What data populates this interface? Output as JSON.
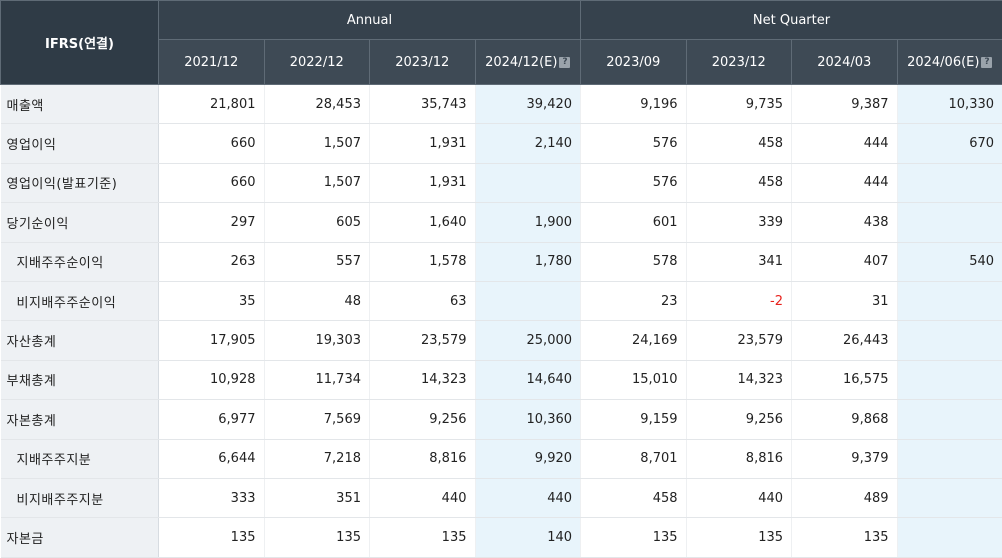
{
  "header": {
    "corner": "IFRS(연결)",
    "group_annual": "Annual",
    "group_quarter": "Net Quarter",
    "periods": [
      "2021/12",
      "2022/12",
      "2023/12",
      "2024/12(E)",
      "2023/09",
      "2023/12",
      "2024/03",
      "2024/06(E)"
    ],
    "estimate_icon": "?"
  },
  "rows": [
    {
      "label": "매출액",
      "values": [
        "21,801",
        "28,453",
        "35,743",
        "39,420",
        "9,196",
        "9,735",
        "9,387",
        "10,330"
      ]
    },
    {
      "label": "영업이익",
      "values": [
        "660",
        "1,507",
        "1,931",
        "2,140",
        "576",
        "458",
        "444",
        "670"
      ]
    },
    {
      "label": "영업이익(발표기준)",
      "values": [
        "660",
        "1,507",
        "1,931",
        "",
        "576",
        "458",
        "444",
        ""
      ]
    },
    {
      "label": "당기순이익",
      "values": [
        "297",
        "605",
        "1,640",
        "1,900",
        "601",
        "339",
        "438",
        ""
      ]
    },
    {
      "label": "지배주주순이익",
      "values": [
        "263",
        "557",
        "1,578",
        "1,780",
        "578",
        "341",
        "407",
        "540"
      ]
    },
    {
      "label": "비지배주주순이익",
      "values": [
        "35",
        "48",
        "63",
        "",
        "23",
        "-2",
        "31",
        ""
      ]
    },
    {
      "label": "자산총계",
      "values": [
        "17,905",
        "19,303",
        "23,579",
        "25,000",
        "24,169",
        "23,579",
        "26,443",
        ""
      ]
    },
    {
      "label": "부채총계",
      "values": [
        "10,928",
        "11,734",
        "14,323",
        "14,640",
        "15,010",
        "14,323",
        "16,575",
        ""
      ]
    },
    {
      "label": "자본총계",
      "values": [
        "6,977",
        "7,569",
        "9,256",
        "10,360",
        "9,159",
        "9,256",
        "9,868",
        ""
      ]
    },
    {
      "label": "지배주주지분",
      "values": [
        "6,644",
        "7,218",
        "8,816",
        "9,920",
        "8,701",
        "8,816",
        "9,379",
        ""
      ]
    },
    {
      "label": "비지배주주지분",
      "values": [
        "333",
        "351",
        "440",
        "440",
        "458",
        "440",
        "489",
        ""
      ]
    },
    {
      "label": "자본금",
      "values": [
        "135",
        "135",
        "135",
        "140",
        "135",
        "135",
        "135",
        ""
      ]
    }
  ],
  "colors": {
    "header_bg": "#3e4a55",
    "estimate_bg": "#e8f4fb",
    "label_bg": "#eef1f4",
    "negative": "#e8211c"
  }
}
